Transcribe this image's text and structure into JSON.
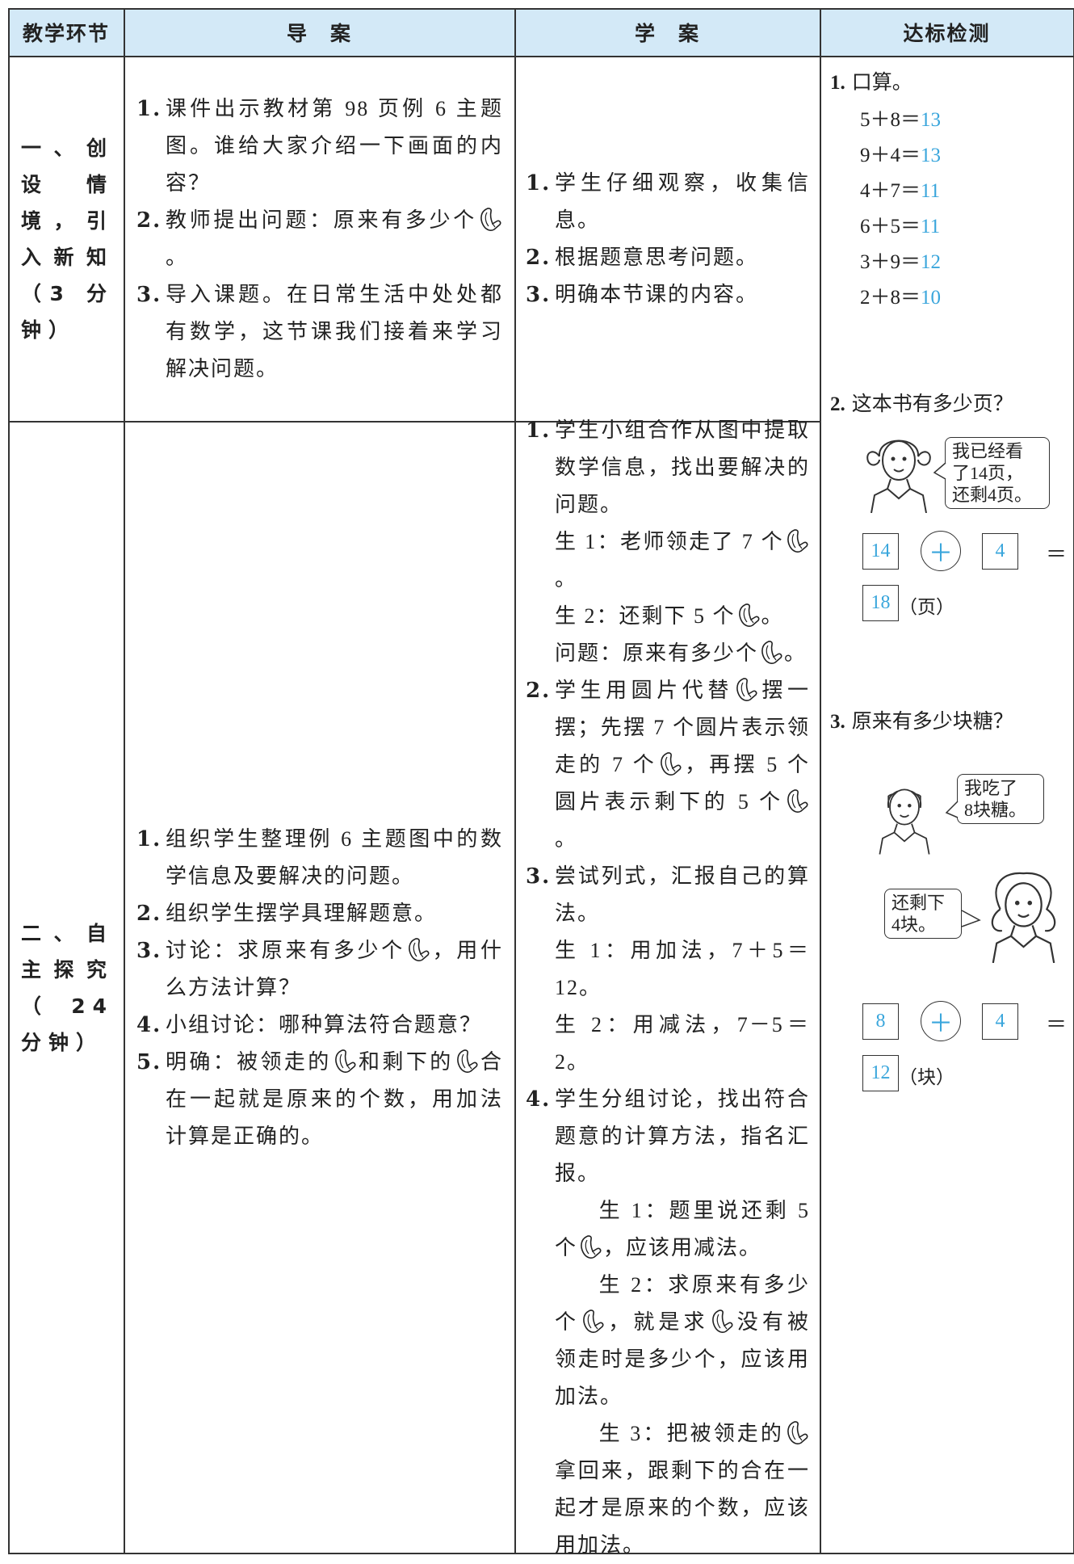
{
  "header": [
    "教学环节",
    "导　案",
    "学　案",
    "达标检测"
  ],
  "rows": [
    {
      "stage": "一、创设情境，引入新知（3 分钟）",
      "guide": [
        {
          "num": "1.",
          "text": [
            [
              "课件出示教材第 98 页例 6 主题图。谁给大家介绍一下画面的内容？"
            ]
          ]
        },
        {
          "num": "2.",
          "text": [
            [
              "教师提出问题：原来有多少个",
              "。"
            ]
          ]
        },
        {
          "num": "3.",
          "text": [
            [
              "导入课题。在日常生活中处处都有数学，这节课我们接着来学习解决问题。"
            ]
          ]
        }
      ],
      "study": [
        {
          "num": "1.",
          "text": [
            [
              "学生仔细观察，收集信息。"
            ]
          ]
        },
        {
          "num": "2.",
          "text": [
            [
              "根据题意思考问题。"
            ]
          ]
        },
        {
          "num": "3.",
          "text": [
            [
              "明确本节课的内容。"
            ]
          ]
        }
      ]
    },
    {
      "stage": "二、自主探究（24 分钟）",
      "guide": [
        {
          "num": "1.",
          "text": [
            [
              "组织学生整理例 6 主题图中的数学信息及要解决的问题。"
            ]
          ]
        },
        {
          "num": "2.",
          "text": [
            [
              "组织学生摆学具理解题意。"
            ]
          ]
        },
        {
          "num": "3.",
          "text": [
            [
              "讨论：求原来有多少个",
              "，用什么方法计算？"
            ]
          ]
        },
        {
          "num": "4.",
          "text": [
            [
              "小组讨论：哪种算法符合题意？"
            ]
          ]
        },
        {
          "num": "5.",
          "text": [
            [
              "明确：被领走的",
              "和剩下的",
              "合在一起就是原来的个数，用加法计算是正确的。"
            ]
          ]
        }
      ],
      "study": [
        {
          "num": "1.",
          "text": [
            [
              "学生小组合作从图中提取数学信息，找出要解决的问题。"
            ],
            [
              "生 1：老师领走了 7 个",
              "。"
            ],
            [
              "生 2：还剩下 5 个",
              "。"
            ],
            [
              "问题：原来有多少个",
              "。"
            ]
          ]
        },
        {
          "num": "2.",
          "text": [
            [
              "学生用圆片代替",
              "摆一摆；先摆 7 个圆片表示领走的 7 个",
              "，再摆 5 个圆片表示剩下的 5 个",
              "。"
            ]
          ]
        },
        {
          "num": "3.",
          "text": [
            [
              "尝试列式，汇报自己的算法。"
            ],
            [
              "生 1：用加法，7＋5＝12。"
            ],
            [
              "生 2：用减法，7－5＝2。"
            ]
          ]
        },
        {
          "num": "4.",
          "text": [
            [
              "学生分组讨论，找出符合题意的计算方法，指名汇报。"
            ],
            [
              "生 1：题里说还剩 5 个",
              "，应该用减法。"
            ],
            [
              "生 2：求原来有多少个",
              "，就是求",
              "没有被领走时是多少个，应该用加法。"
            ],
            [
              "生 3：把被领走的",
              "拿回来，跟剩下的合在一起才是原来的个数，应该用加法。"
            ]
          ]
        }
      ]
    }
  ],
  "check": {
    "item1": {
      "num": "1.",
      "title": "口算。",
      "problems": [
        {
          "expr": "5＋8＝",
          "answer": "13"
        },
        {
          "expr": "9＋4＝",
          "answer": "13"
        },
        {
          "expr": "4＋7＝",
          "answer": "11"
        },
        {
          "expr": "6＋5＝",
          "answer": "11"
        },
        {
          "expr": "3＋9＝",
          "answer": "12"
        },
        {
          "expr": "2＋8＝",
          "answer": "10"
        }
      ]
    },
    "item2": {
      "num": "2.",
      "title": "这本书有多少页？",
      "bubble": [
        "我已经看",
        "了14页，",
        "还剩4页。"
      ],
      "equation": {
        "a": "14",
        "op": "＋",
        "b": "4",
        "eq": "＝",
        "result": "18",
        "unit": "（页）"
      }
    },
    "item3": {
      "num": "3.",
      "title": "原来有多少块糖？",
      "bubbles": [
        [
          "我吃了",
          "8块糖。"
        ],
        [
          "还剩下",
          "4块。"
        ]
      ],
      "equation": {
        "a": "8",
        "op": "＋",
        "b": "4",
        "eq": "＝",
        "result": "12",
        "unit": "（块）"
      }
    }
  }
}
